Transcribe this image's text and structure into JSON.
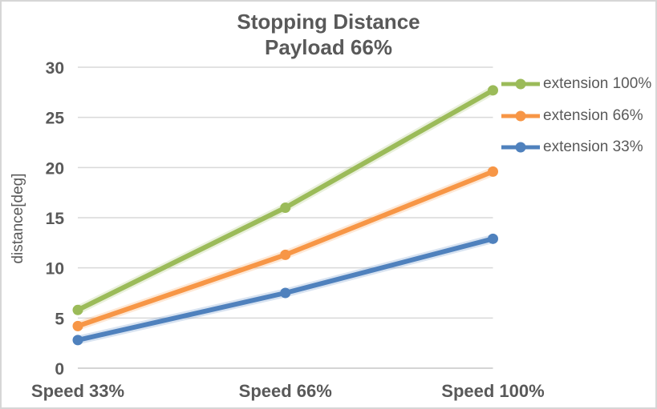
{
  "chart_data": {
    "type": "line",
    "title": "Stopping Distance",
    "subtitle": "Payload 66%",
    "ylabel": "distance[deg]",
    "xlabel": "",
    "categories": [
      "Speed 33%",
      "Speed 66%",
      "Speed 100%"
    ],
    "series": [
      {
        "name": "extension 100%",
        "color": "#9BBB59",
        "values": [
          5.8,
          16.0,
          27.7
        ]
      },
      {
        "name": "extension 66%",
        "color": "#F79646",
        "values": [
          4.2,
          11.3,
          19.6
        ]
      },
      {
        "name": "extension 33%",
        "color": "#4F81BD",
        "values": [
          2.8,
          7.5,
          12.9
        ]
      }
    ],
    "ylim": [
      0,
      30
    ],
    "yticks": [
      0,
      5,
      10,
      15,
      20,
      25,
      30
    ],
    "grid": true,
    "legend_position": "right",
    "colors": {
      "text": "#595959",
      "gridline": "#D9D9D9",
      "axis_line": "#C6C6C6",
      "border": "#D6D6D6",
      "background": "#FFFFFF"
    }
  }
}
